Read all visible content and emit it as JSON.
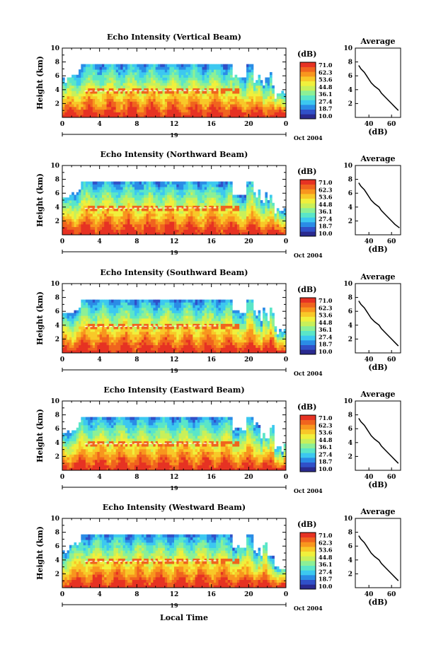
{
  "figure": {
    "xlabel_bottom": "Local Time",
    "date_label": "Oct 2004",
    "colorbar_unit": "(dB)",
    "colorbar_ticks": [
      "71.0",
      "62.3",
      "53.6",
      "44.8",
      "36.1",
      "27.4",
      "18.7",
      "10.0"
    ],
    "colorscale": [
      "#2a2a8f",
      "#3050c8",
      "#2a8ce6",
      "#3cc8f0",
      "#5ae6c8",
      "#8cf096",
      "#c8f05a",
      "#f0f03c",
      "#f8c828",
      "#f8961e",
      "#f0641e",
      "#e63223"
    ],
    "main_xticks": [
      "0",
      "4",
      "8",
      "12",
      "16",
      "20",
      "0"
    ],
    "day_label": "19",
    "ylabel": "Height (km)",
    "yticks": [
      "10",
      "8",
      "6",
      "4",
      "2"
    ],
    "avg_title": "Average",
    "avg_xlabel": "(dB)"
  },
  "chart_data": [
    {
      "type": "heatmap",
      "title": "Echo Intensity (Vertical Beam)",
      "xlim": [
        0,
        24
      ],
      "ylim": [
        0,
        10
      ],
      "avg_profile": {
        "title": "Average",
        "xlabel": "(dB)",
        "xticks": [
          "40",
          "60"
        ],
        "xlim": [
          28,
          68
        ],
        "height": [
          1.0,
          1.5,
          2.0,
          2.5,
          3.0,
          3.5,
          4.0,
          4.5,
          5.0,
          5.5,
          6.0,
          6.5,
          7.0,
          7.5
        ],
        "db": [
          66,
          63,
          60,
          57,
          54,
          51,
          49,
          45,
          42,
          40,
          38,
          36,
          33,
          31
        ]
      }
    },
    {
      "type": "heatmap",
      "title": "Echo Intensity (Northward Beam)",
      "xlim": [
        0,
        24
      ],
      "ylim": [
        0,
        10
      ],
      "avg_profile": {
        "title": "Average",
        "xlabel": "(dB)",
        "xticks": [
          "40",
          "60"
        ],
        "xlim": [
          28,
          68
        ],
        "height": [
          1.0,
          1.5,
          2.0,
          2.5,
          3.0,
          3.5,
          4.0,
          4.5,
          5.0,
          5.5,
          6.0,
          6.5,
          7.0,
          7.5
        ],
        "db": [
          67,
          63,
          60,
          57,
          54,
          51,
          49,
          45,
          42,
          40,
          38,
          36,
          33,
          31
        ]
      }
    },
    {
      "type": "heatmap",
      "title": "Echo Intensity (Southward Beam)",
      "xlim": [
        0,
        24
      ],
      "ylim": [
        0,
        10
      ],
      "avg_profile": {
        "title": "Average",
        "xlabel": "(dB)",
        "xticks": [
          "40",
          "60"
        ],
        "xlim": [
          28,
          68
        ],
        "height": [
          1.0,
          1.5,
          2.0,
          2.5,
          3.0,
          3.5,
          4.0,
          4.5,
          5.0,
          5.5,
          6.0,
          6.5,
          7.0,
          7.5
        ],
        "db": [
          66,
          63,
          60,
          57,
          54,
          51,
          49,
          45,
          42,
          40,
          38,
          36,
          33,
          31
        ]
      }
    },
    {
      "type": "heatmap",
      "title": "Echo Intensity (Eastward Beam)",
      "xlim": [
        0,
        24
      ],
      "ylim": [
        0,
        10
      ],
      "avg_profile": {
        "title": "Average",
        "xlabel": "(dB)",
        "xticks": [
          "40",
          "60"
        ],
        "xlim": [
          28,
          68
        ],
        "height": [
          1.0,
          1.5,
          2.0,
          2.5,
          3.0,
          3.5,
          4.0,
          4.5,
          5.0,
          5.5,
          6.0,
          6.5,
          7.0,
          7.5
        ],
        "db": [
          66,
          63,
          60,
          57,
          54,
          51,
          49,
          45,
          42,
          40,
          38,
          36,
          33,
          31
        ]
      }
    },
    {
      "type": "heatmap",
      "title": "Echo Intensity (Westward Beam)",
      "xlim": [
        0,
        24
      ],
      "ylim": [
        0,
        10
      ],
      "avg_profile": {
        "title": "Average",
        "xlabel": "(dB)",
        "xticks": [
          "40",
          "60"
        ],
        "xlim": [
          28,
          68
        ],
        "height": [
          1.0,
          1.5,
          2.0,
          2.5,
          3.0,
          3.5,
          4.0,
          4.5,
          5.0,
          5.5,
          6.0,
          6.5,
          7.0,
          7.5
        ],
        "db": [
          66,
          63,
          60,
          57,
          54,
          51,
          49,
          45,
          42,
          40,
          38,
          36,
          33,
          31
        ]
      }
    }
  ]
}
